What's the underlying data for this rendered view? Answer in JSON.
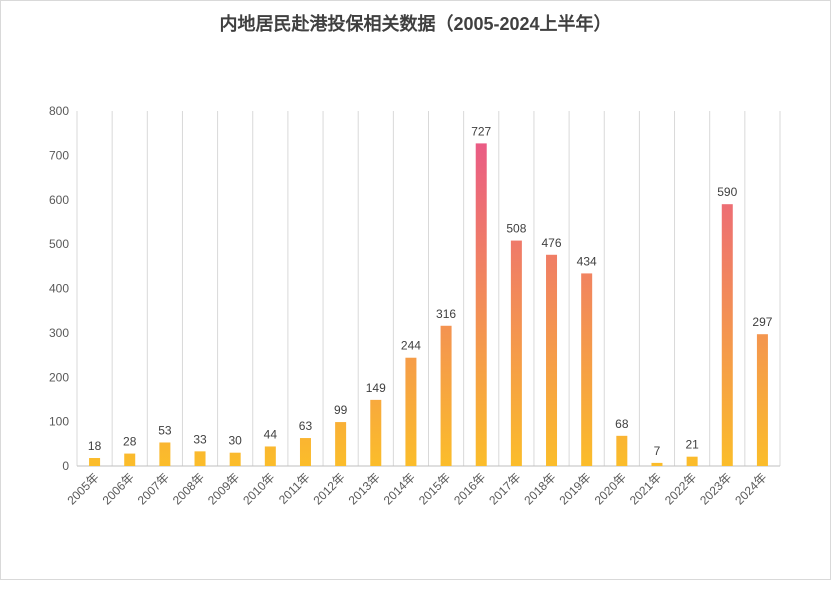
{
  "chart_data": {
    "type": "bar",
    "title": "内地居民赴港投保相关数据（2005-2024上半年）",
    "xlabel": "",
    "ylabel": "",
    "ylim": [
      0,
      800
    ],
    "yticks": [
      0,
      100,
      200,
      300,
      400,
      500,
      600,
      700,
      800
    ],
    "categories": [
      "2005年",
      "2006年",
      "2007年",
      "2008年",
      "2009年",
      "2010年",
      "2011年",
      "2012年",
      "2013年",
      "2014年",
      "2015年",
      "2016年",
      "2017年",
      "2018年",
      "2019年",
      "2020年",
      "2021年",
      "2022年",
      "2023年",
      "2024年"
    ],
    "values": [
      18,
      28,
      53,
      33,
      30,
      44,
      63,
      99,
      149,
      244,
      316,
      727,
      508,
      476,
      434,
      68,
      7,
      21,
      590,
      297
    ],
    "gradient": {
      "top": "#e8528e",
      "bottom": "#fbbd2a"
    },
    "grid": "vertical",
    "legend": "none"
  }
}
